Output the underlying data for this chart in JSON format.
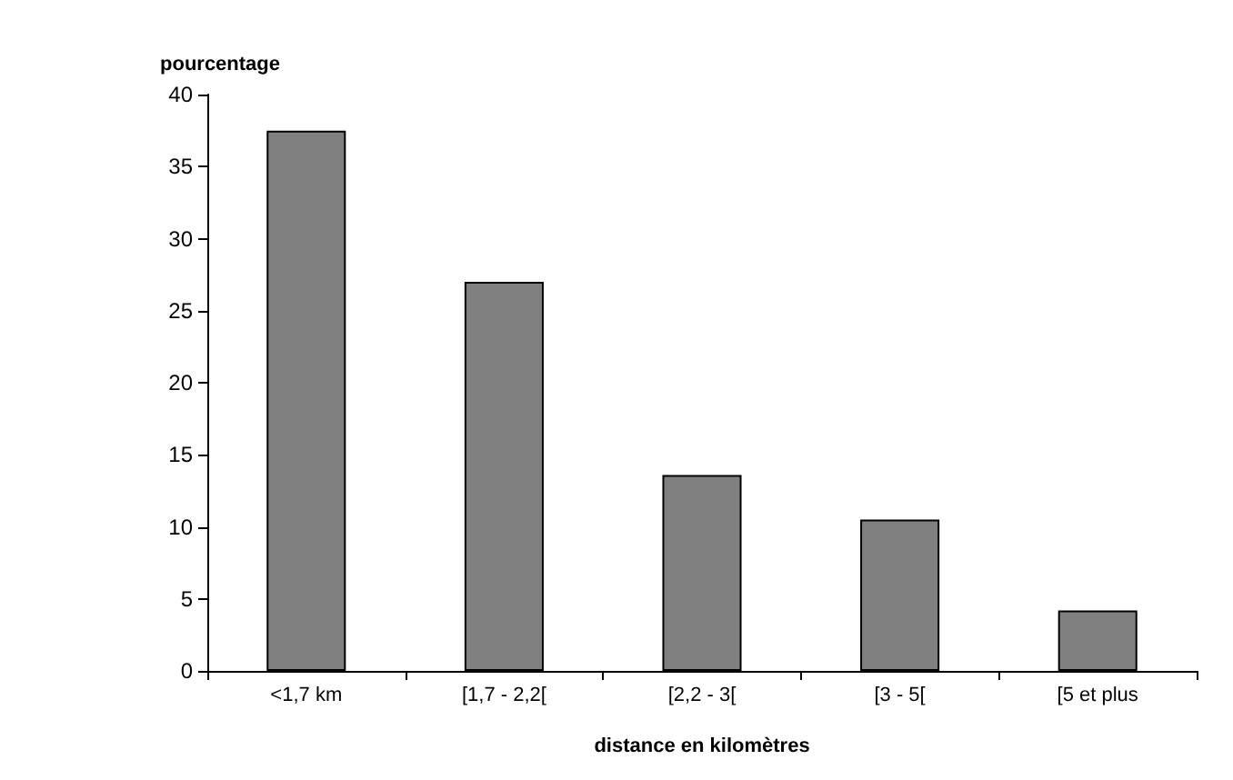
{
  "chart_data": {
    "type": "bar",
    "xlabel": "distance en kilomètres",
    "ylabel": "pourcentage",
    "categories": [
      "<1,7 km",
      "[1,7 - 2,2[",
      "[2,2 - 3[",
      "[3 - 5[",
      "[5 et plus"
    ],
    "values": [
      37.5,
      27,
      13.6,
      10.5,
      4.2
    ],
    "color": "#808080",
    "ylim": [
      0,
      40
    ],
    "yticks": [
      0,
      5,
      10,
      15,
      20,
      25,
      30,
      35,
      40
    ],
    "grid": false
  }
}
